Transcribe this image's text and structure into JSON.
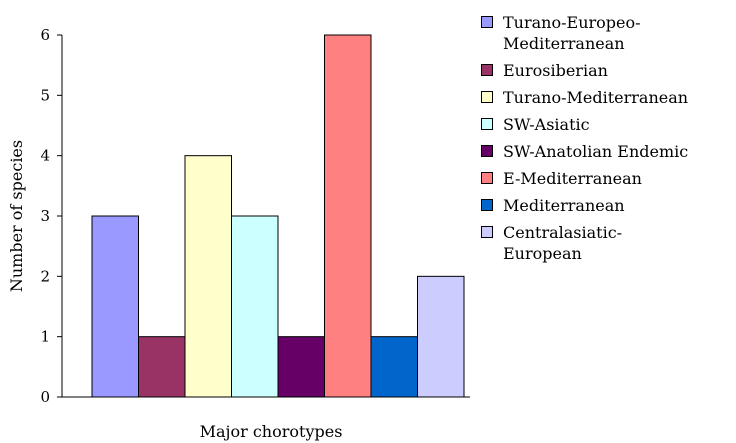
{
  "chart_data": {
    "type": "bar",
    "xlabel": "Major chorotypes",
    "ylabel": "Number of species",
    "ylim": [
      0,
      6
    ],
    "yticks": [
      "0",
      "1",
      "2",
      "3",
      "4",
      "5",
      "6"
    ],
    "grid": false,
    "legend_position": "right",
    "series": [
      {
        "name": "Turano-Europeo-\nMediterranean",
        "value": 3,
        "color": "#9999ff"
      },
      {
        "name": "Eurosiberian",
        "value": 1,
        "color": "#993366"
      },
      {
        "name": "Turano-Mediterranean",
        "value": 4,
        "color": "#ffffcc"
      },
      {
        "name": "SW-Asiatic",
        "value": 3,
        "color": "#ccffff"
      },
      {
        "name": "SW-Anatolian Endemic",
        "value": 1,
        "color": "#660066"
      },
      {
        "name": "E-Mediterranean",
        "value": 6,
        "color": "#ff8080"
      },
      {
        "name": "Mediterranean",
        "value": 1,
        "color": "#0066cc"
      },
      {
        "name": "Centralasiatic-\nEuropean",
        "value": 2,
        "color": "#ccccff"
      }
    ]
  }
}
